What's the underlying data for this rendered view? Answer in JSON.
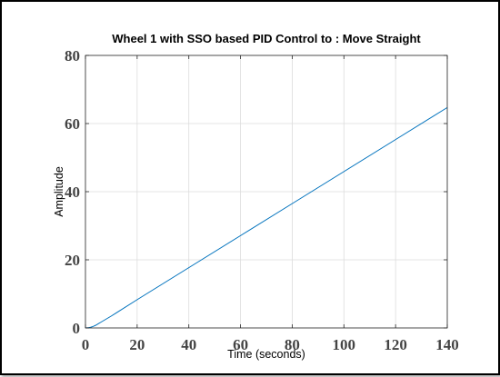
{
  "chart_data": {
    "type": "line",
    "title": "Wheel 1 with SSO based PID Control to : Move Straight",
    "xlabel": "Time (seconds)",
    "ylabel": "Amplitude",
    "xlim": [
      0,
      140
    ],
    "ylim": [
      0,
      80
    ],
    "xticks": [
      "0",
      "20",
      "40",
      "60",
      "80",
      "100",
      "120",
      "140"
    ],
    "yticks": [
      "0",
      "20",
      "40",
      "60",
      "80"
    ],
    "grid": true,
    "series": [
      {
        "color": "#0072BD",
        "x": [
          0,
          1,
          2,
          3,
          4,
          5,
          6,
          8,
          10,
          20,
          40,
          60,
          80,
          100,
          120,
          140
        ],
        "y": [
          0,
          0.05,
          0.2,
          0.45,
          0.8,
          1.25,
          1.7,
          2.6,
          3.5,
          8.3,
          17.7,
          27.1,
          36.5,
          45.9,
          55.3,
          64.7
        ]
      }
    ]
  }
}
